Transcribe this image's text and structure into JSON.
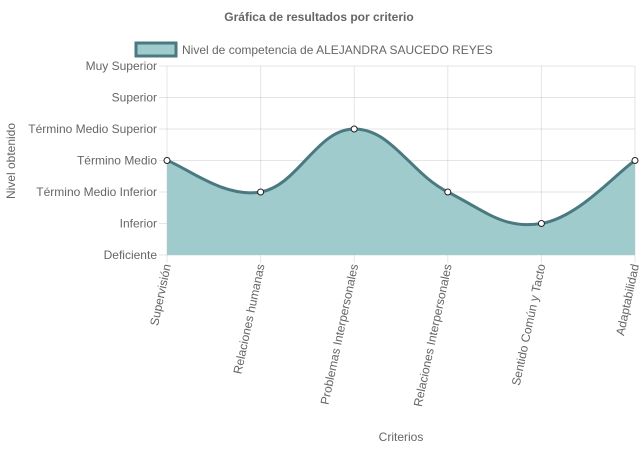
{
  "chart_data": {
    "type": "area",
    "title": "Gráfica de resultados por criterio",
    "xlabel": "Criterios",
    "ylabel": "Nivel obtenido",
    "categories": [
      "Supervisión",
      "Relaciones humanas",
      "Problemas Interpersonales",
      "Relaciones Interpersonales",
      "Sentido Común y Tacto",
      "Adaptabilidad"
    ],
    "y_levels": [
      "Deficiente",
      "Inferior",
      "Término Medio Inferior",
      "Término Medio",
      "Término Medio Superior",
      "Superior",
      "Muy Superior"
    ],
    "ylim": [
      0,
      6
    ],
    "series": [
      {
        "name": "Nivel de competencia de ALEJANDRA SAUCEDO REYES",
        "values": [
          3,
          2,
          4,
          2,
          1,
          3
        ]
      }
    ],
    "legend_position": "top",
    "grid": true,
    "colors": {
      "fill": "#9fcbcd",
      "line": "#4a7a80",
      "legend_border": "#4a7a80",
      "point_fill": "#ffffff"
    }
  }
}
